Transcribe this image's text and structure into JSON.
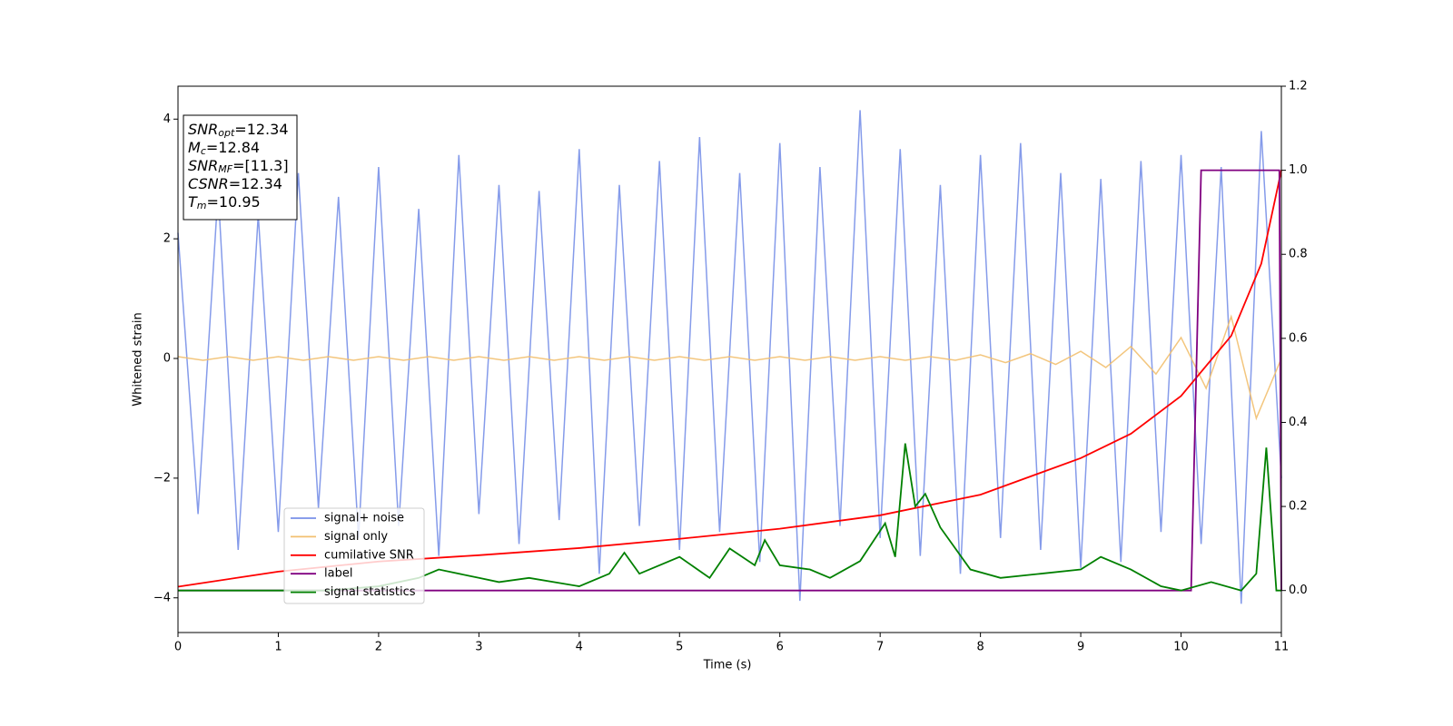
{
  "chart_data": {
    "type": "line",
    "xlabel": "Time (s)",
    "ylabel": "Whitened strain",
    "xlim": [
      0,
      11
    ],
    "xticks": [
      0,
      1,
      2,
      3,
      4,
      5,
      6,
      7,
      8,
      9,
      10,
      11
    ],
    "ylim": [
      -4.58,
      4.55
    ],
    "yticks": [
      {
        "value": -4,
        "label": "−4"
      },
      {
        "value": -2,
        "label": "−2"
      },
      0,
      2,
      4
    ],
    "y2lim": [
      -0.1,
      1.2
    ],
    "y2ticks": [
      {
        "value": 0,
        "label": "0.0"
      },
      {
        "value": 0.2,
        "label": "0.2"
      },
      {
        "value": 0.4,
        "label": "0.4"
      },
      {
        "value": 0.6,
        "label": "0.6"
      },
      {
        "value": 0.8,
        "label": "0.8"
      },
      {
        "value": 1,
        "label": "1.0"
      },
      {
        "value": 1.2,
        "label": "1.2"
      }
    ],
    "legend": "lower left",
    "annotation": [
      {
        "symbol": "SNR",
        "sub": "opt",
        "text": "=12.34"
      },
      {
        "symbol": "M",
        "sub": "c",
        "text": "=12.84"
      },
      {
        "symbol": "SNR",
        "sub": "MF",
        "text": "=[11.3]"
      },
      {
        "symbol": "CSNR",
        "text": "=12.34"
      },
      {
        "symbol": "T",
        "sub": "m",
        "text": "=10.95"
      }
    ],
    "series": [
      {
        "name": "signal+ noise",
        "color": "#7890e8",
        "x": [
          0,
          0.2,
          0.4,
          0.6,
          0.8,
          1,
          1.2,
          1.4,
          1.6,
          1.8,
          2,
          2.2,
          2.4,
          2.6,
          2.8,
          3,
          3.2,
          3.4,
          3.6,
          3.8,
          4,
          4.2,
          4.4,
          4.6,
          4.8,
          5,
          5.2,
          5.4,
          5.6,
          5.8,
          6,
          6.2,
          6.4,
          6.6,
          6.8,
          7,
          7.2,
          7.4,
          7.6,
          7.8,
          8,
          8.2,
          8.4,
          8.6,
          8.8,
          9,
          9.2,
          9.4,
          9.6,
          9.8,
          10,
          10.2,
          10.4,
          10.6,
          10.8,
          11
        ],
        "values": [
          2.1,
          -2.6,
          2.8,
          -3.2,
          2.4,
          -2.9,
          3.1,
          -2.5,
          2.7,
          -3.0,
          3.2,
          -2.8,
          2.5,
          -3.3,
          3.4,
          -2.6,
          2.9,
          -3.1,
          2.8,
          -2.7,
          3.5,
          -3.6,
          2.9,
          -2.8,
          3.3,
          -3.2,
          3.7,
          -2.9,
          3.1,
          -3.4,
          3.6,
          -4.05,
          3.2,
          -2.8,
          4.15,
          -3.0,
          3.5,
          -3.3,
          2.9,
          -3.6,
          3.4,
          -3.0,
          3.6,
          -3.2,
          3.1,
          -3.5,
          3.0,
          -3.4,
          3.3,
          -2.9,
          3.4,
          -3.1,
          3.2,
          -4.1,
          3.8,
          -2.0
        ]
      },
      {
        "name": "signal only",
        "color": "#f2c070",
        "x": [
          0,
          0.25,
          0.5,
          0.75,
          1,
          1.25,
          1.5,
          1.75,
          2,
          2.25,
          2.5,
          2.75,
          3,
          3.25,
          3.5,
          3.75,
          4,
          4.25,
          4.5,
          4.75,
          5,
          5.25,
          5.5,
          5.75,
          6,
          6.25,
          6.5,
          6.75,
          7,
          7.25,
          7.5,
          7.75,
          8,
          8.25,
          8.5,
          8.75,
          9,
          9.25,
          9.5,
          9.75,
          10,
          10.25,
          10.5,
          10.75,
          11
        ],
        "values": [
          0.03,
          -0.03,
          0.03,
          -0.03,
          0.03,
          -0.03,
          0.03,
          -0.03,
          0.03,
          -0.03,
          0.03,
          -0.03,
          0.03,
          -0.03,
          0.03,
          -0.03,
          0.03,
          -0.03,
          0.03,
          -0.03,
          0.03,
          -0.03,
          0.03,
          -0.03,
          0.03,
          -0.03,
          0.03,
          -0.03,
          0.03,
          -0.03,
          0.03,
          -0.03,
          0.06,
          -0.07,
          0.08,
          -0.1,
          0.12,
          -0.15,
          0.2,
          -0.26,
          0.35,
          -0.5,
          0.7,
          -1.0,
          0
        ]
      },
      {
        "name": "cumilative SNR",
        "color": "#ff0000",
        "axis": "y2",
        "x": [
          0,
          1,
          2,
          3,
          4,
          5,
          6,
          7,
          8,
          9,
          9.5,
          10,
          10.5,
          10.8,
          11
        ],
        "values": [
          0.009,
          0.045,
          0.069,
          0.084,
          0.101,
          0.123,
          0.147,
          0.179,
          0.228,
          0.315,
          0.373,
          0.463,
          0.606,
          0.778,
          1.0
        ]
      },
      {
        "name": "label",
        "color": "#800080",
        "axis": "y2",
        "x": [
          0,
          10.1,
          10.2,
          10.98,
          11
        ],
        "values": [
          0,
          0,
          1,
          1,
          0
        ]
      },
      {
        "name": "signal statistics",
        "color": "#008000",
        "axis": "y2",
        "x": [
          0,
          1.5,
          2,
          2.4,
          2.6,
          3,
          3.2,
          3.5,
          4,
          4.3,
          4.45,
          4.6,
          5,
          5.3,
          5.5,
          5.75,
          5.85,
          6,
          6.3,
          6.5,
          6.8,
          7.05,
          7.15,
          7.25,
          7.35,
          7.45,
          7.6,
          7.9,
          8.2,
          8.6,
          9,
          9.2,
          9.5,
          9.8,
          10,
          10.3,
          10.6,
          10.75,
          10.85,
          10.95,
          11
        ],
        "values": [
          0,
          0,
          0.01,
          0.03,
          0.05,
          0.03,
          0.02,
          0.03,
          0.01,
          0.04,
          0.09,
          0.04,
          0.08,
          0.03,
          0.1,
          0.06,
          0.12,
          0.06,
          0.05,
          0.03,
          0.07,
          0.16,
          0.08,
          0.35,
          0.2,
          0.23,
          0.15,
          0.05,
          0.03,
          0.04,
          0.05,
          0.08,
          0.05,
          0.01,
          0,
          0.02,
          0,
          0.04,
          0.34,
          0,
          0
        ]
      }
    ]
  }
}
